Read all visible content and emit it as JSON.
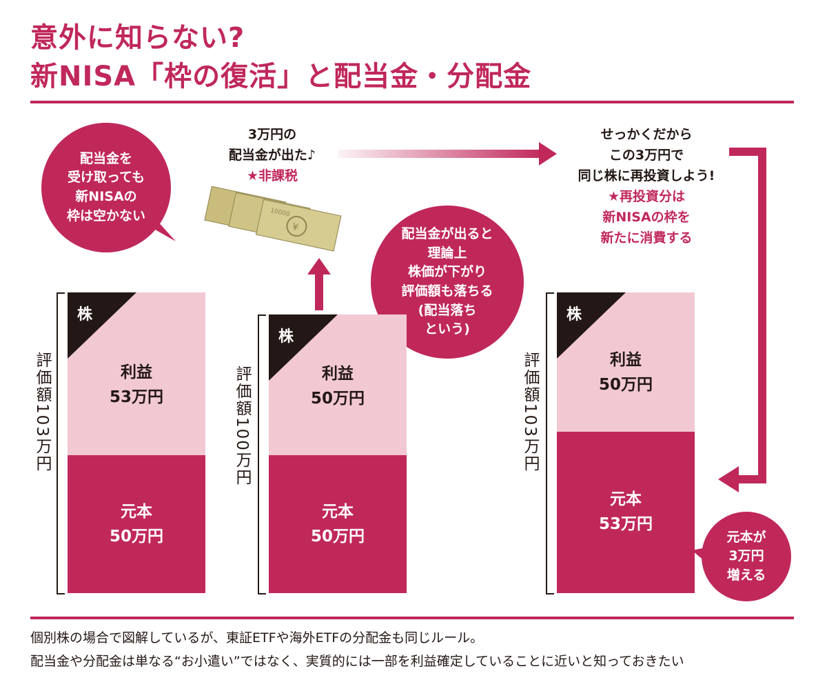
{
  "title": {
    "line1": "意外に知らない?",
    "line2": "新NISA「枠の復活」と配当金・分配金"
  },
  "bubble_left": [
    "配当金を",
    "受け取っても",
    "新NISAの",
    "枠は空かない"
  ],
  "callout_dividend": {
    "lines": [
      "3万円の",
      "配当金が出た♪"
    ],
    "note": "★非課税"
  },
  "banknote_text": "10000",
  "bubble_middle": [
    "配当金が出ると",
    "理論上",
    "株価が下がり",
    "評価額も落ちる",
    "(配当落ち",
    "という)"
  ],
  "callout_reinvest": {
    "lines": [
      "せっかくだから",
      "この3万円で",
      "同じ株に再投資しよう!"
    ],
    "note_lines": [
      "★再投資分は",
      "新NISAの枠を",
      "新たに消費する"
    ]
  },
  "bubble_right": [
    "元本が",
    "3万円",
    "増える"
  ],
  "bars": [
    {
      "valuation_label": "評価額103万円",
      "stock_tag": "株",
      "profit_label": "利益",
      "profit_amount": "53万円",
      "principal_label": "元本",
      "principal_amount": "50万円",
      "profit_value": 53,
      "principal_value": 50
    },
    {
      "valuation_label": "評価額100万円",
      "stock_tag": "株",
      "profit_label": "利益",
      "profit_amount": "50万円",
      "principal_label": "元本",
      "principal_amount": "50万円",
      "profit_value": 50,
      "principal_value": 50
    },
    {
      "valuation_label": "評価額103万円",
      "stock_tag": "株",
      "profit_label": "利益",
      "profit_amount": "50万円",
      "principal_label": "元本",
      "principal_amount": "53万円",
      "profit_value": 50,
      "principal_value": 53
    }
  ],
  "footer": {
    "line1": "個別株の場合で図解しているが、東証ETFや海外ETFの分配金も同じルール。",
    "line2": "配当金や分配金は単なる“お小遣い”ではなく、実質的には一部を利益確定していることに近いと知っておきたい"
  },
  "colors": {
    "accent": "#c0285a",
    "profit": "#f2c9d3",
    "text": "#231815",
    "banknote": "#c9bc7c"
  }
}
